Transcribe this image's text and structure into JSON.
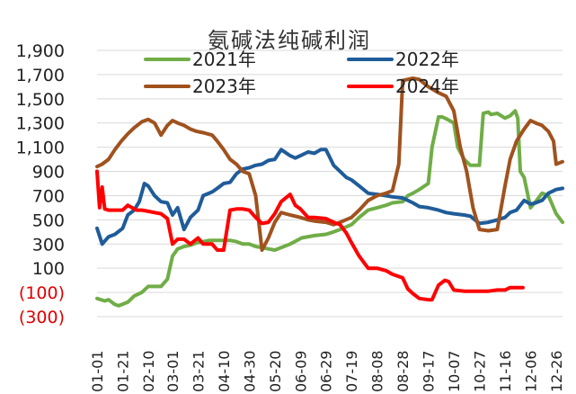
{
  "chart_data": {
    "type": "line",
    "title": "氨碱法纯碱利润",
    "xlabel": "",
    "ylabel": "",
    "ylim": [
      -300,
      1900
    ],
    "yticks": [
      1900,
      1700,
      1500,
      1300,
      1100,
      900,
      700,
      500,
      300,
      100,
      -100,
      -300
    ],
    "ytick_labels": [
      "1,900",
      "1,700",
      "1,500",
      "1,300",
      "1,100",
      "900",
      "700",
      "500",
      "300",
      "100",
      "(100)",
      "(300)"
    ],
    "x_day_range": [
      1,
      365
    ],
    "xtick_labels": [
      "01-01",
      "01-21",
      "02-10",
      "03-01",
      "03-21",
      "04-10",
      "04-30",
      "05-20",
      "06-09",
      "06-29",
      "07-19",
      "08-08",
      "08-28",
      "09-17",
      "10-07",
      "10-27",
      "11-16",
      "12-06",
      "12-26"
    ],
    "grid": "horizontal",
    "legend_position": "top",
    "series": [
      {
        "name": "2021年",
        "color": "#70ad47",
        "x": [
          "01-01",
          "01-07",
          "01-10",
          "01-15",
          "01-18",
          "01-25",
          "01-30",
          "02-05",
          "02-10",
          "02-15",
          "02-20",
          "02-25",
          "03-01",
          "03-05",
          "03-10",
          "03-15",
          "03-20",
          "03-25",
          "03-30",
          "04-05",
          "04-10",
          "04-15",
          "04-20",
          "04-25",
          "04-30",
          "05-05",
          "05-10",
          "05-15",
          "05-20",
          "05-25",
          "06-01",
          "06-10",
          "06-20",
          "06-29",
          "07-05",
          "07-10",
          "07-19",
          "07-25",
          "08-01",
          "08-08",
          "08-15",
          "08-20",
          "08-28",
          "09-01",
          "09-05",
          "09-10",
          "09-17",
          "09-20",
          "09-25",
          "09-28",
          "10-02",
          "10-07",
          "10-10",
          "10-15",
          "10-20",
          "10-27",
          "10-30",
          "11-03",
          "11-05",
          "11-10",
          "11-16",
          "11-20",
          "11-24",
          "11-26",
          "11-28",
          "12-01",
          "12-06",
          "12-10",
          "12-15",
          "12-20",
          "12-26",
          "12-31"
        ],
        "values": [
          -150,
          -170,
          -160,
          -200,
          -210,
          -180,
          -130,
          -100,
          -50,
          -50,
          -50,
          10,
          200,
          260,
          280,
          290,
          310,
          320,
          330,
          330,
          330,
          330,
          320,
          300,
          300,
          280,
          270,
          260,
          250,
          270,
          300,
          350,
          370,
          380,
          400,
          420,
          460,
          520,
          580,
          600,
          620,
          640,
          650,
          700,
          720,
          750,
          800,
          1100,
          1350,
          1350,
          1330,
          1300,
          1100,
          1000,
          950,
          950,
          1380,
          1390,
          1370,
          1380,
          1340,
          1360,
          1400,
          1340,
          900,
          850,
          600,
          650,
          720,
          700,
          550,
          480
        ]
      },
      {
        "name": "2022年",
        "color": "#1f5c99",
        "x": [
          "01-01",
          "01-05",
          "01-10",
          "01-15",
          "01-21",
          "01-25",
          "01-30",
          "02-03",
          "02-07",
          "02-10",
          "02-15",
          "02-20",
          "02-25",
          "03-01",
          "03-05",
          "03-10",
          "03-15",
          "03-21",
          "03-25",
          "04-01",
          "04-05",
          "04-10",
          "04-15",
          "04-20",
          "04-25",
          "04-30",
          "05-05",
          "05-10",
          "05-15",
          "05-20",
          "05-25",
          "06-01",
          "06-05",
          "06-09",
          "06-15",
          "06-20",
          "06-25",
          "06-29",
          "07-05",
          "07-10",
          "07-15",
          "07-19",
          "07-25",
          "08-01",
          "08-08",
          "08-15",
          "08-20",
          "08-28",
          "09-05",
          "09-10",
          "09-17",
          "09-25",
          "10-01",
          "10-07",
          "10-15",
          "10-20",
          "10-27",
          "11-03",
          "11-10",
          "11-16",
          "11-20",
          "11-25",
          "12-01",
          "12-06",
          "12-10",
          "12-15",
          "12-20",
          "12-26",
          "12-31"
        ],
        "values": [
          430,
          300,
          360,
          380,
          430,
          540,
          580,
          650,
          800,
          780,
          700,
          650,
          640,
          540,
          600,
          420,
          520,
          580,
          700,
          730,
          760,
          800,
          810,
          880,
          920,
          930,
          950,
          960,
          990,
          1000,
          1080,
          1030,
          1010,
          1030,
          1060,
          1050,
          1080,
          1080,
          950,
          900,
          850,
          830,
          780,
          720,
          710,
          700,
          690,
          680,
          640,
          610,
          600,
          580,
          560,
          550,
          540,
          530,
          470,
          480,
          500,
          520,
          560,
          580,
          660,
          630,
          640,
          660,
          720,
          750,
          760
        ]
      },
      {
        "name": "2023年",
        "color": "#a0521e",
        "x": [
          "01-01",
          "01-05",
          "01-10",
          "01-15",
          "01-20",
          "01-25",
          "01-30",
          "02-05",
          "02-10",
          "02-15",
          "02-20",
          "02-25",
          "03-01",
          "03-05",
          "03-10",
          "03-15",
          "03-20",
          "03-25",
          "04-01",
          "04-05",
          "04-10",
          "04-15",
          "04-20",
          "04-25",
          "04-30",
          "05-05",
          "05-10",
          "05-15",
          "05-20",
          "05-25",
          "06-01",
          "06-09",
          "06-15",
          "06-20",
          "06-29",
          "07-05",
          "07-10",
          "07-19",
          "07-25",
          "08-01",
          "08-08",
          "08-15",
          "08-20",
          "08-25",
          "08-28",
          "09-05",
          "09-10",
          "09-17",
          "09-25",
          "10-01",
          "10-07",
          "10-12",
          "10-17",
          "10-22",
          "10-27",
          "11-03",
          "11-10",
          "11-16",
          "11-20",
          "11-25",
          "12-01",
          "12-06",
          "12-10",
          "12-15",
          "12-20",
          "12-24",
          "12-26",
          "12-31"
        ],
        "values": [
          940,
          960,
          1000,
          1080,
          1150,
          1210,
          1260,
          1310,
          1330,
          1300,
          1200,
          1280,
          1320,
          1300,
          1280,
          1250,
          1230,
          1220,
          1200,
          1150,
          1080,
          1000,
          960,
          900,
          880,
          700,
          250,
          350,
          480,
          560,
          540,
          520,
          500,
          490,
          480,
          460,
          480,
          520,
          580,
          660,
          700,
          720,
          740,
          960,
          1650,
          1670,
          1660,
          1600,
          1550,
          1520,
          1400,
          1100,
          900,
          600,
          420,
          410,
          420,
          780,
          1000,
          1150,
          1250,
          1320,
          1300,
          1280,
          1230,
          1150,
          960,
          980
        ]
      },
      {
        "name": "2024年",
        "color": "#ff0000",
        "x": [
          "01-01",
          "01-03",
          "01-05",
          "01-07",
          "01-10",
          "01-15",
          "01-21",
          "01-25",
          "02-01",
          "02-05",
          "02-10",
          "02-15",
          "02-20",
          "02-25",
          "03-01",
          "03-05",
          "03-10",
          "03-15",
          "03-21",
          "03-25",
          "04-01",
          "04-05",
          "04-10",
          "04-15",
          "04-20",
          "04-25",
          "04-30",
          "05-05",
          "05-10",
          "05-15",
          "05-20",
          "05-25",
          "06-01",
          "06-05",
          "06-09",
          "06-15",
          "06-20",
          "06-29",
          "07-05",
          "07-10",
          "07-15",
          "07-19",
          "07-25",
          "08-01",
          "08-08",
          "08-15",
          "08-20",
          "08-28",
          "09-01",
          "09-05",
          "09-10",
          "09-17",
          "09-20",
          "09-25",
          "09-30",
          "10-03",
          "10-07",
          "10-15",
          "10-20",
          "10-27",
          "11-03",
          "11-10",
          "11-16",
          "11-20",
          "11-25",
          "11-30"
        ],
        "values": [
          900,
          600,
          770,
          590,
          580,
          580,
          580,
          620,
          580,
          580,
          570,
          560,
          550,
          510,
          300,
          340,
          340,
          300,
          350,
          300,
          300,
          250,
          250,
          580,
          590,
          590,
          580,
          520,
          470,
          480,
          550,
          650,
          710,
          620,
          590,
          520,
          520,
          510,
          480,
          460,
          390,
          310,
          200,
          100,
          100,
          80,
          50,
          20,
          -70,
          -110,
          -150,
          -160,
          -160,
          -40,
          0,
          -10,
          -80,
          -90,
          -90,
          -90,
          -90,
          -80,
          -80,
          -60,
          -60,
          -60
        ]
      }
    ]
  }
}
